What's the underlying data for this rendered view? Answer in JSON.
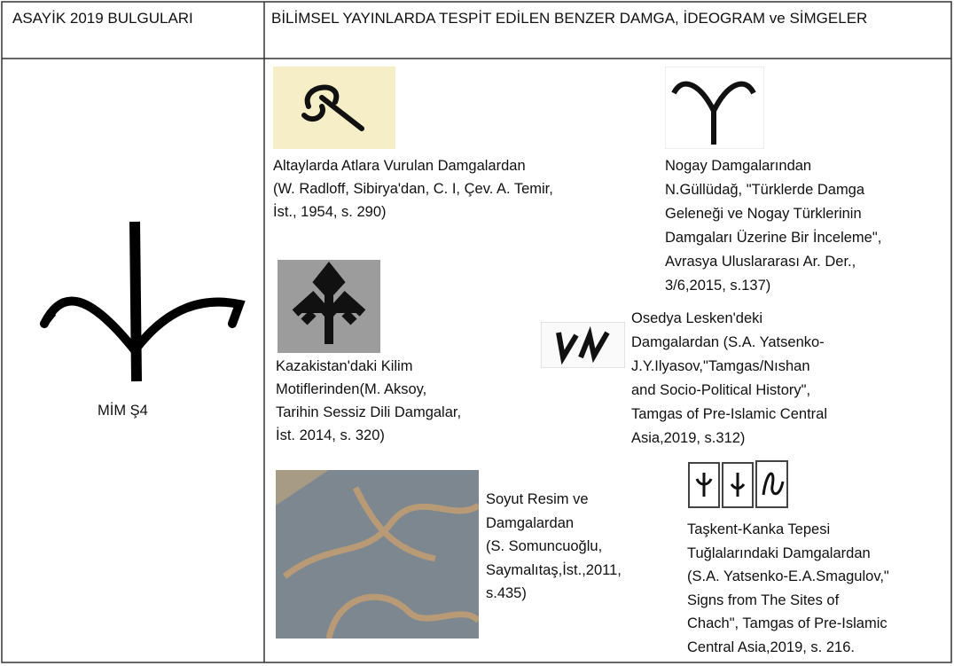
{
  "table": {
    "header": [
      "ASAYİK 2019 BULGULARI",
      "BİLİMSEL YAYINLARDA TESPİT EDİLEN BENZER DAMGA, İDEOGRAM ve SİMGELER"
    ],
    "finding": "MİM Ş4",
    "items": [
      {
        "caption": [
          "Altaylarda Atlara Vurulan Damgalardan",
          "(W. Radloff, Sibirya'dan, C. I, Çev. A. Temir,",
          "İst., 1954, s. 290)"
        ]
      },
      {
        "caption": [
          "Nogay Damgalarından",
          "N.Güllüdağ, \"Türklerde Damga",
          "Geleneği ve Nogay Türklerinin",
          "Damgaları Üzerine Bir İnceleme\",",
          "Avrasya Uluslararası Ar. Der.,",
          "3/6,2015, s.137)"
        ]
      },
      {
        "caption": [
          "Kazakistan'daki Kilim",
          "Motiflerinden(M. Aksoy,",
          "Tarihin Sessiz Dili Damgalar,",
          "İst. 2014, s. 320)"
        ]
      },
      {
        "caption": [
          "Osedya Lesken'deki",
          "Damgalardan (S.A. Yatsenko-",
          "J.Y.Ilyasov,\"Tamgas/Nıshan",
          "and Socio-Political History\",",
          "Tamgas of Pre-Islamic Central",
          "Asia,2019, s.312)"
        ]
      },
      {
        "caption": [
          "Soyut Resim ve",
          "Damgalardan",
          "(S. Somuncuoğlu,",
          "Saymalıtaş,İst.,2011,",
          "s.435)"
        ]
      },
      {
        "caption": [
          "Taşkent-Kanka Tepesi",
          "Tuğlalarındaki Damgalardan",
          "(S.A. Yatsenko-E.A.Smagulov,\"",
          "Signs from The Sites of",
          "Chach\", Tamgas of Pre-Islamic",
          "Central Asia,2019, s. 216."
        ]
      }
    ]
  }
}
